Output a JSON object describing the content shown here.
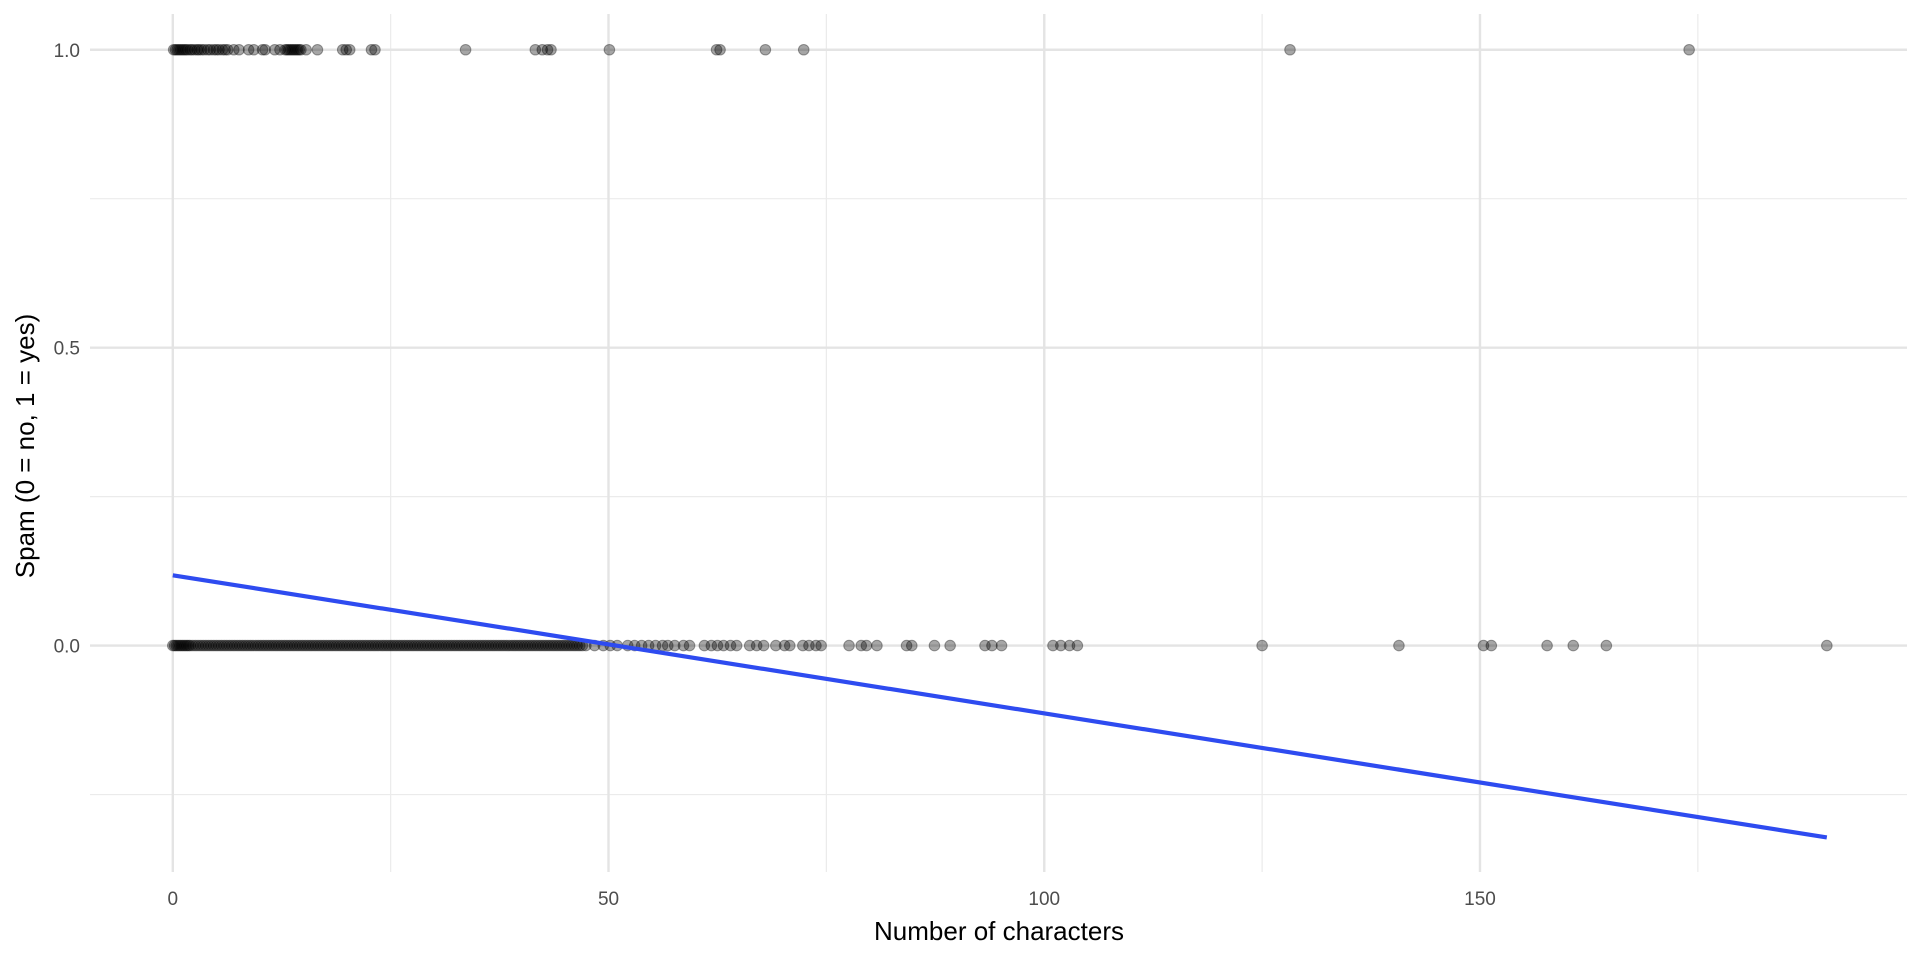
{
  "chart_data": {
    "type": "scatter",
    "title": "",
    "xlabel": "Number of characters",
    "ylabel": "Spam (0 = no, 1 = yes)",
    "xlim": [
      -9.5,
      199
    ],
    "ylim": [
      -0.38,
      1.06
    ],
    "x_ticks": [
      0,
      50,
      100,
      150
    ],
    "x_tick_labels": [
      "0",
      "50",
      "100",
      "150"
    ],
    "x_minor_ticks": [
      25,
      75,
      125,
      175
    ],
    "y_ticks": [
      0.0,
      0.5,
      1.0
    ],
    "y_tick_labels": [
      "0.0",
      "0.5",
      "1.0"
    ],
    "y_minor_ticks": [
      -0.25,
      0.25,
      0.75
    ],
    "grid": true,
    "legend": "none",
    "point_color": "#000000",
    "point_opacity": 0.35,
    "line_color": "#2E4BF0",
    "series": [
      {
        "type": "points",
        "y": 1,
        "x": [
          0.1,
          0.3,
          0.5,
          0.7,
          0.9,
          1.1,
          1.3,
          1.5,
          1.7,
          2.0,
          2.2,
          2.5,
          2.8,
          3.0,
          3.3,
          3.6,
          4.0,
          4.3,
          4.7,
          5.0,
          5.3,
          5.7,
          6.0,
          6.3,
          7.0,
          7.6,
          8.7,
          9.3,
          10.3,
          10.6,
          11.7,
          12.3,
          12.9,
          13.1,
          13.3,
          13.5,
          13.7,
          13.9,
          14.1,
          14.3,
          14.5,
          14.7,
          15.3,
          16.6,
          19.5,
          19.9,
          20.3,
          22.8,
          23.2,
          33.6,
          41.6,
          42.4,
          43.0,
          43.4,
          50.1,
          62.4,
          62.8,
          68.0,
          72.4,
          128.2,
          174.0
        ]
      },
      {
        "type": "points",
        "y": 0,
        "x": [
          0.0,
          0.2,
          0.4,
          0.6,
          0.8,
          1.0,
          1.2,
          1.4,
          1.6,
          1.8,
          2.0,
          2.3,
          2.6,
          2.9,
          3.2,
          3.5,
          3.8,
          4.1,
          4.4,
          4.7,
          5.0,
          5.3,
          5.6,
          5.9,
          6.2,
          6.5,
          6.8,
          7.1,
          7.4,
          7.7,
          8.0,
          8.3,
          8.6,
          8.9,
          9.2,
          9.5,
          9.8,
          10.1,
          10.4,
          10.7,
          11.0,
          11.3,
          11.6,
          11.9,
          12.2,
          12.5,
          12.8,
          13.1,
          13.4,
          13.7,
          14.0,
          14.3,
          14.6,
          14.9,
          15.2,
          15.5,
          15.8,
          16.1,
          16.4,
          16.7,
          17.0,
          17.3,
          17.6,
          17.9,
          18.2,
          18.5,
          18.8,
          19.1,
          19.4,
          19.7,
          20.0,
          20.3,
          20.6,
          20.9,
          21.2,
          21.5,
          21.8,
          22.1,
          22.4,
          22.7,
          23.0,
          23.3,
          23.6,
          23.9,
          24.2,
          24.5,
          24.8,
          25.1,
          25.4,
          25.7,
          26.0,
          26.3,
          26.6,
          26.9,
          27.2,
          27.5,
          27.8,
          28.1,
          28.4,
          28.7,
          29.0,
          29.3,
          29.6,
          29.9,
          30.2,
          30.5,
          30.8,
          31.1,
          31.4,
          31.7,
          32.0,
          32.3,
          32.6,
          32.9,
          33.2,
          33.5,
          33.8,
          34.1,
          34.4,
          34.7,
          35.0,
          35.3,
          35.6,
          35.9,
          36.2,
          36.5,
          36.8,
          37.1,
          37.4,
          37.7,
          38.0,
          38.3,
          38.6,
          38.9,
          39.2,
          39.5,
          39.8,
          40.1,
          40.4,
          40.7,
          41.0,
          41.3,
          41.6,
          41.9,
          42.2,
          42.5,
          42.8,
          43.1,
          43.4,
          43.7,
          44.0,
          44.3,
          44.6,
          44.9,
          45.2,
          45.5,
          45.8,
          46.1,
          46.4,
          46.7,
          47.0,
          47.4,
          48.4,
          49.4,
          50.2,
          51.0,
          52.2,
          53.0,
          53.8,
          54.6,
          55.4,
          56.2,
          56.8,
          57.6,
          58.6,
          59.3,
          61.0,
          61.8,
          62.5,
          63.2,
          64.0,
          64.7,
          66.2,
          67.0,
          67.8,
          69.2,
          70.2,
          70.8,
          72.3,
          73.0,
          73.8,
          74.4,
          77.6,
          79.0,
          79.6,
          80.8,
          84.2,
          84.8,
          87.4,
          89.2,
          93.2,
          94.0,
          95.1,
          101.0,
          101.9,
          102.9,
          103.8,
          125.0,
          140.7,
          150.4,
          151.3,
          157.7,
          160.7,
          164.5,
          189.8
        ]
      },
      {
        "type": "line",
        "name": "",
        "x": [
          0,
          189.8
        ],
        "y": [
          0.118,
          -0.322
        ]
      }
    ]
  }
}
